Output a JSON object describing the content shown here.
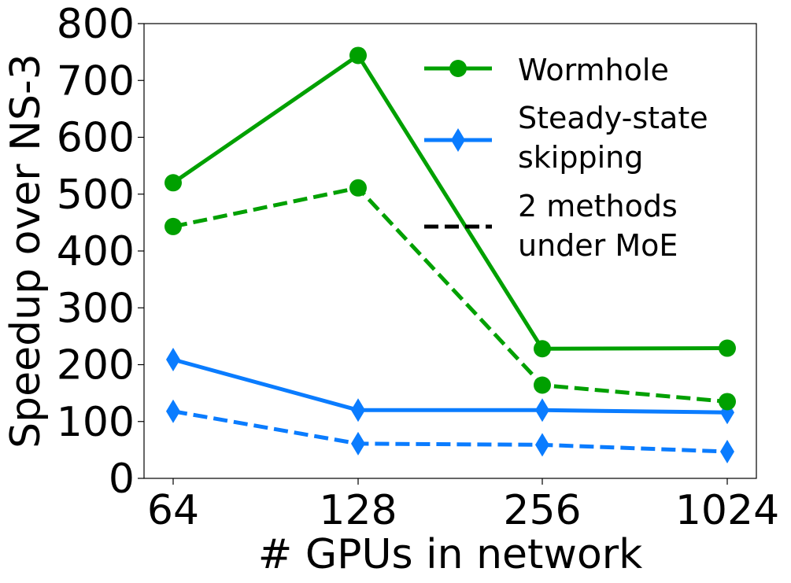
{
  "chart_data": {
    "type": "line",
    "title": "",
    "xlabel": "# GPUs in network",
    "ylabel": "Speedup over NS-3",
    "categories": [
      "64",
      "128",
      "256",
      "1024"
    ],
    "ylim": [
      0,
      800
    ],
    "yticks": [
      0,
      100,
      200,
      300,
      400,
      500,
      600,
      700,
      800
    ],
    "grid": false,
    "legend_position": "top-right",
    "series": [
      {
        "name": "Wormhole",
        "color": "#00a000",
        "marker": "circle",
        "linestyle": "solid",
        "values": [
          520,
          744,
          228,
          229
        ]
      },
      {
        "name": "Steady-state skipping",
        "color": "#0a7cff",
        "marker": "diamond",
        "linestyle": "solid",
        "values": [
          209,
          120,
          120,
          116
        ]
      },
      {
        "color": "#00a000",
        "marker": "circle",
        "linestyle": "dashed",
        "values": [
          443,
          511,
          164,
          135
        ]
      },
      {
        "color": "#0a7cff",
        "marker": "diamond",
        "linestyle": "dashed",
        "values": [
          118,
          61,
          59,
          47
        ]
      }
    ],
    "legend": [
      {
        "lines": [
          "Wormhole"
        ],
        "color": "#00a000",
        "marker": "circle",
        "linestyle": "solid"
      },
      {
        "lines": [
          "Steady-state",
          "skipping"
        ],
        "color": "#0a7cff",
        "marker": "diamond",
        "linestyle": "solid"
      },
      {
        "lines": [
          "2 methods",
          "under MoE"
        ],
        "color": "#000000",
        "marker": "none",
        "linestyle": "dashed"
      }
    ]
  }
}
